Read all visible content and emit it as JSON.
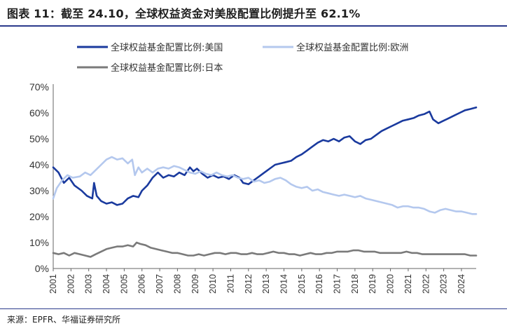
{
  "header": {
    "title": "图表 11：截至 24.10，全球权益资金对美股配置比例提升至 62.1%"
  },
  "footer": {
    "source": "来源：EPFR、华福证券研究所"
  },
  "chart_data": {
    "type": "line",
    "title": "图表 11：截至 24.10，全球权益资金对美股配置比例提升至 62.1%",
    "xlabel": "",
    "ylabel": "",
    "ylim": [
      0,
      70
    ],
    "xlim": [
      2001,
      2024.83
    ],
    "y_ticks": [
      "0%",
      "10%",
      "20%",
      "30%",
      "40%",
      "50%",
      "60%",
      "70%"
    ],
    "x_ticks": [
      "2001",
      "2002",
      "2003",
      "2004",
      "2005",
      "2006",
      "2007",
      "2008",
      "2009",
      "2010",
      "2011",
      "2012",
      "2013",
      "2014",
      "2015",
      "2016",
      "2017",
      "2018",
      "2019",
      "2020",
      "2021",
      "2022",
      "2023",
      "2024"
    ],
    "grid": false,
    "legend_position": "top",
    "series": [
      {
        "name": "全球权益基金配置比例:美国",
        "color": "#1a3a9e",
        "points": [
          [
            2001.0,
            39
          ],
          [
            2001.3,
            37
          ],
          [
            2001.6,
            33
          ],
          [
            2001.9,
            35
          ],
          [
            2002.2,
            32
          ],
          [
            2002.6,
            30
          ],
          [
            2002.9,
            28
          ],
          [
            2003.2,
            27
          ],
          [
            2003.3,
            33
          ],
          [
            2003.45,
            28
          ],
          [
            2003.7,
            26
          ],
          [
            2004.0,
            25
          ],
          [
            2004.3,
            25.5
          ],
          [
            2004.6,
            24.5
          ],
          [
            2004.9,
            25
          ],
          [
            2005.2,
            27
          ],
          [
            2005.5,
            28
          ],
          [
            2005.8,
            27.5
          ],
          [
            2006.0,
            30
          ],
          [
            2006.3,
            32
          ],
          [
            2006.6,
            35
          ],
          [
            2006.9,
            37
          ],
          [
            2007.2,
            35
          ],
          [
            2007.5,
            36
          ],
          [
            2007.8,
            35.5
          ],
          [
            2008.1,
            37
          ],
          [
            2008.4,
            36
          ],
          [
            2008.7,
            39
          ],
          [
            2008.9,
            37.5
          ],
          [
            2009.1,
            38.5
          ],
          [
            2009.4,
            36.5
          ],
          [
            2009.7,
            35
          ],
          [
            2010.0,
            36
          ],
          [
            2010.3,
            35
          ],
          [
            2010.6,
            35.5
          ],
          [
            2010.9,
            34.5
          ],
          [
            2011.2,
            36
          ],
          [
            2011.5,
            35
          ],
          [
            2011.7,
            33
          ],
          [
            2012.0,
            32.5
          ],
          [
            2012.3,
            34
          ],
          [
            2012.6,
            35.5
          ],
          [
            2012.9,
            37
          ],
          [
            2013.2,
            38.5
          ],
          [
            2013.5,
            40
          ],
          [
            2013.8,
            40.5
          ],
          [
            2014.1,
            41
          ],
          [
            2014.4,
            41.5
          ],
          [
            2014.7,
            43
          ],
          [
            2015.0,
            44
          ],
          [
            2015.3,
            45.5
          ],
          [
            2015.6,
            47
          ],
          [
            2015.9,
            48.5
          ],
          [
            2016.2,
            49.5
          ],
          [
            2016.5,
            49
          ],
          [
            2016.8,
            50
          ],
          [
            2017.1,
            49
          ],
          [
            2017.4,
            50.5
          ],
          [
            2017.7,
            51
          ],
          [
            2018.0,
            49
          ],
          [
            2018.3,
            48
          ],
          [
            2018.6,
            49.5
          ],
          [
            2018.9,
            50
          ],
          [
            2019.2,
            51.5
          ],
          [
            2019.5,
            53
          ],
          [
            2019.8,
            54
          ],
          [
            2020.1,
            55
          ],
          [
            2020.4,
            56
          ],
          [
            2020.7,
            57
          ],
          [
            2021.0,
            57.5
          ],
          [
            2021.3,
            58
          ],
          [
            2021.6,
            59
          ],
          [
            2021.9,
            59.5
          ],
          [
            2022.2,
            60.5
          ],
          [
            2022.4,
            57.5
          ],
          [
            2022.7,
            56
          ],
          [
            2023.0,
            57
          ],
          [
            2023.3,
            58
          ],
          [
            2023.6,
            59
          ],
          [
            2023.9,
            60
          ],
          [
            2024.2,
            61
          ],
          [
            2024.5,
            61.5
          ],
          [
            2024.83,
            62.1
          ]
        ]
      },
      {
        "name": "全球权益基金配置比例:欧洲",
        "color": "#b4c8ee",
        "points": [
          [
            2001.0,
            27
          ],
          [
            2001.2,
            31
          ],
          [
            2001.5,
            34
          ],
          [
            2001.8,
            36
          ],
          [
            2002.1,
            35
          ],
          [
            2002.5,
            35.5
          ],
          [
            2002.8,
            37
          ],
          [
            2003.1,
            36
          ],
          [
            2003.4,
            38
          ],
          [
            2003.7,
            40
          ],
          [
            2004.0,
            42
          ],
          [
            2004.3,
            43
          ],
          [
            2004.6,
            42
          ],
          [
            2004.9,
            42.5
          ],
          [
            2005.2,
            40.5
          ],
          [
            2005.45,
            42
          ],
          [
            2005.6,
            36
          ],
          [
            2005.8,
            39
          ],
          [
            2006.0,
            37
          ],
          [
            2006.3,
            38.5
          ],
          [
            2006.6,
            37
          ],
          [
            2006.9,
            38.5
          ],
          [
            2007.2,
            39
          ],
          [
            2007.5,
            38.5
          ],
          [
            2007.8,
            39.5
          ],
          [
            2008.1,
            39
          ],
          [
            2008.4,
            38
          ],
          [
            2008.7,
            37
          ],
          [
            2009.0,
            36.5
          ],
          [
            2009.3,
            37.5
          ],
          [
            2009.6,
            36.5
          ],
          [
            2009.9,
            36
          ],
          [
            2010.2,
            37
          ],
          [
            2010.5,
            36
          ],
          [
            2010.8,
            35.5
          ],
          [
            2011.1,
            36
          ],
          [
            2011.4,
            35
          ],
          [
            2011.7,
            34.5
          ],
          [
            2012.0,
            35
          ],
          [
            2012.3,
            33.5
          ],
          [
            2012.6,
            34
          ],
          [
            2012.9,
            33
          ],
          [
            2013.2,
            33.5
          ],
          [
            2013.5,
            34.5
          ],
          [
            2013.8,
            35
          ],
          [
            2014.1,
            34
          ],
          [
            2014.4,
            32.5
          ],
          [
            2014.7,
            31.5
          ],
          [
            2015.0,
            31
          ],
          [
            2015.3,
            31.5
          ],
          [
            2015.6,
            30
          ],
          [
            2015.9,
            30.5
          ],
          [
            2016.2,
            29.5
          ],
          [
            2016.5,
            29
          ],
          [
            2016.8,
            28.5
          ],
          [
            2017.1,
            28
          ],
          [
            2017.4,
            28.5
          ],
          [
            2017.7,
            28
          ],
          [
            2018.0,
            27.5
          ],
          [
            2018.3,
            28
          ],
          [
            2018.6,
            27
          ],
          [
            2018.9,
            26.5
          ],
          [
            2019.2,
            26
          ],
          [
            2019.5,
            25.5
          ],
          [
            2019.8,
            25
          ],
          [
            2020.1,
            24.5
          ],
          [
            2020.4,
            23.5
          ],
          [
            2020.7,
            24
          ],
          [
            2021.0,
            24
          ],
          [
            2021.3,
            23.5
          ],
          [
            2021.6,
            23.5
          ],
          [
            2021.9,
            23
          ],
          [
            2022.2,
            22
          ],
          [
            2022.5,
            21.5
          ],
          [
            2022.8,
            22.5
          ],
          [
            2023.1,
            23
          ],
          [
            2023.4,
            22.5
          ],
          [
            2023.7,
            22
          ],
          [
            2024.0,
            22
          ],
          [
            2024.3,
            21.5
          ],
          [
            2024.6,
            21
          ],
          [
            2024.83,
            21
          ]
        ]
      },
      {
        "name": "全球权益基金配置比例:日本",
        "color": "#7a7a7a",
        "points": [
          [
            2001.0,
            6
          ],
          [
            2001.3,
            5.5
          ],
          [
            2001.6,
            6
          ],
          [
            2001.9,
            5
          ],
          [
            2002.2,
            6
          ],
          [
            2002.5,
            5.5
          ],
          [
            2002.8,
            5
          ],
          [
            2003.1,
            4.5
          ],
          [
            2003.4,
            5.5
          ],
          [
            2003.7,
            6.5
          ],
          [
            2004.0,
            7.5
          ],
          [
            2004.3,
            8
          ],
          [
            2004.6,
            8.5
          ],
          [
            2004.9,
            8.5
          ],
          [
            2005.2,
            9
          ],
          [
            2005.5,
            8.5
          ],
          [
            2005.7,
            10
          ],
          [
            2005.9,
            9.5
          ],
          [
            2006.2,
            9
          ],
          [
            2006.5,
            8
          ],
          [
            2006.8,
            7.5
          ],
          [
            2007.1,
            7
          ],
          [
            2007.4,
            6.5
          ],
          [
            2007.7,
            6
          ],
          [
            2008.0,
            6
          ],
          [
            2008.3,
            5.5
          ],
          [
            2008.6,
            5
          ],
          [
            2008.9,
            5
          ],
          [
            2009.2,
            5.5
          ],
          [
            2009.5,
            5
          ],
          [
            2009.8,
            5.5
          ],
          [
            2010.1,
            6
          ],
          [
            2010.4,
            6
          ],
          [
            2010.7,
            5.5
          ],
          [
            2011.0,
            6
          ],
          [
            2011.3,
            6
          ],
          [
            2011.6,
            5.5
          ],
          [
            2011.9,
            5.5
          ],
          [
            2012.2,
            6
          ],
          [
            2012.5,
            5.5
          ],
          [
            2012.8,
            5.5
          ],
          [
            2013.1,
            6
          ],
          [
            2013.4,
            6.5
          ],
          [
            2013.7,
            6
          ],
          [
            2014.0,
            6
          ],
          [
            2014.3,
            5.5
          ],
          [
            2014.6,
            5.5
          ],
          [
            2014.9,
            5
          ],
          [
            2015.2,
            5.5
          ],
          [
            2015.5,
            6
          ],
          [
            2015.8,
            5.5
          ],
          [
            2016.1,
            5.5
          ],
          [
            2016.4,
            6
          ],
          [
            2016.7,
            6
          ],
          [
            2017.0,
            6.5
          ],
          [
            2017.3,
            6.5
          ],
          [
            2017.6,
            6.5
          ],
          [
            2017.9,
            7
          ],
          [
            2018.2,
            7
          ],
          [
            2018.5,
            6.5
          ],
          [
            2018.8,
            6.5
          ],
          [
            2019.1,
            6.5
          ],
          [
            2019.4,
            6
          ],
          [
            2019.7,
            6
          ],
          [
            2020.0,
            6
          ],
          [
            2020.3,
            6
          ],
          [
            2020.6,
            6
          ],
          [
            2020.9,
            6.5
          ],
          [
            2021.2,
            6
          ],
          [
            2021.5,
            6
          ],
          [
            2021.8,
            5.5
          ],
          [
            2022.1,
            5.5
          ],
          [
            2022.4,
            5.5
          ],
          [
            2022.7,
            5.5
          ],
          [
            2023.0,
            5.5
          ],
          [
            2023.3,
            5.5
          ],
          [
            2023.6,
            5.5
          ],
          [
            2023.9,
            5.5
          ],
          [
            2024.2,
            5.5
          ],
          [
            2024.5,
            5
          ],
          [
            2024.83,
            5
          ]
        ]
      }
    ]
  }
}
